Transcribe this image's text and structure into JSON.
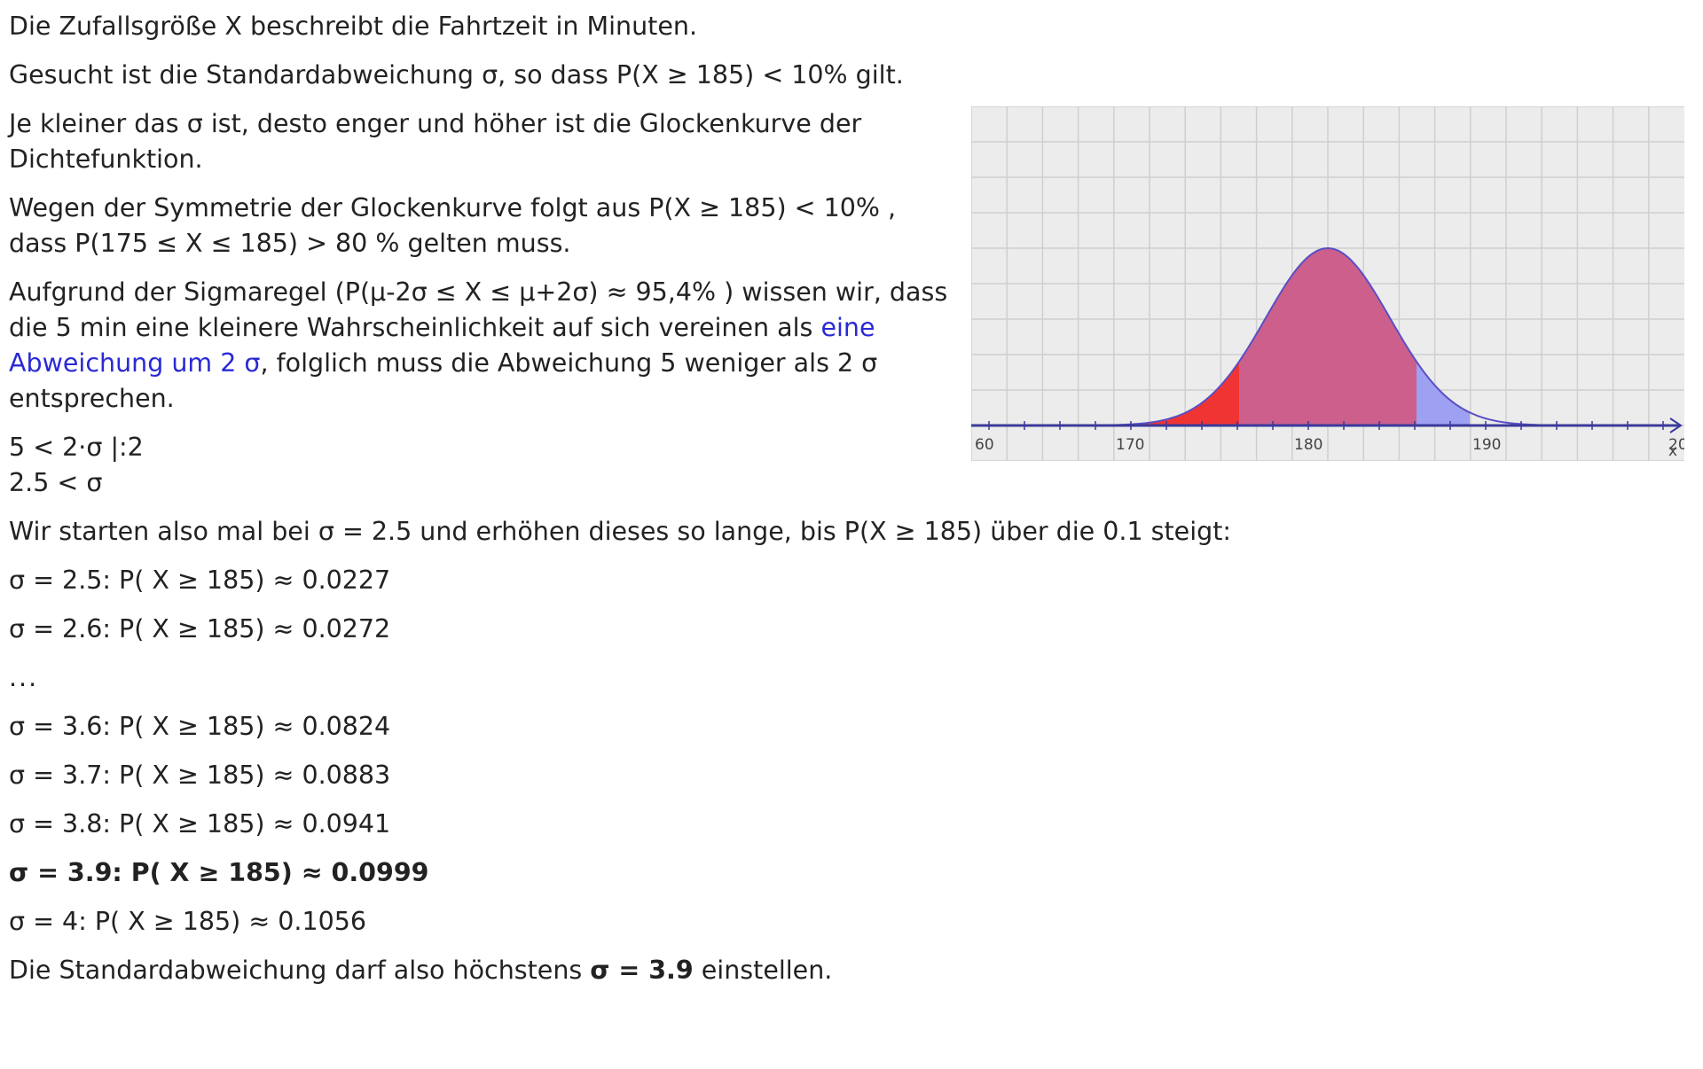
{
  "intro": {
    "line1": "Die Zufallsgröße X beschreibt die Fahrtzeit in Minuten.",
    "line2": "Gesucht ist die Standardabweichung σ, so dass P(X ≥ 185) < 10% gilt.",
    "line3": "Je kleiner das σ ist, desto enger und höher ist die Glockenkurve der Dichtefunktion.",
    "line4a": "Wegen der Symmetrie der Glockenkurve folgt aus P(X ≥ 185) < 10% ,",
    "line4b": "dass P(175 ≤ X ≤ 185) > 80 % gelten muss.",
    "line5_pre": "Aufgrund der Sigmaregel (P(μ-2σ ≤ X ≤ μ+2σ) ≈ 95,4% ) wissen wir, dass die 5 min eine kleinere Wahrscheinlichkeit auf sich vereinen als ",
    "line5_link": "eine Abweichung um 2 σ",
    "line5_post": ", folglich muss die Abweichung 5 weniger als 2 σ entsprechen.",
    "ineq1": "5 < 2·σ |:2",
    "ineq2": "2.5 < σ",
    "start": "Wir starten also mal bei σ = 2.5 und erhöhen dieses so lange, bis P(X ≥ 185) über die 0.1 steigt:"
  },
  "steps": {
    "s1": "σ = 2.5: P( X ≥ 185) ≈ 0.0227",
    "s2": "σ = 2.6: P( X ≥ 185) ≈ 0.0272",
    "ellipsis": "...",
    "s3": "σ = 3.6: P( X ≥ 185) ≈ 0.0824",
    "s4": "σ = 3.7: P( X ≥ 185) ≈ 0.0883",
    "s5": "σ = 3.8: P( X ≥ 185) ≈ 0.0941",
    "s6": "σ = 3.9: P( X ≥ 185) ≈ 0.0999",
    "s7": "σ = 4: P( X ≥ 185) ≈ 0.1056"
  },
  "conclusion": {
    "pre": "Die Standardabweichung darf also höchstens ",
    "bold": "σ = 3.9",
    "post": " einstellen."
  },
  "graph": {
    "tick_labels": [
      "60",
      "170",
      "180",
      "190",
      "20"
    ],
    "axis_label": "x",
    "colors": {
      "curve": "#5a4fc4",
      "center_fill": "#cc5f8c",
      "left_fill": "#f03434",
      "right_fill": "#9ea0f2",
      "grid_bg": "#ececec",
      "grid_line": "#cfcfcf",
      "axis": "#3a3a9a"
    }
  }
}
